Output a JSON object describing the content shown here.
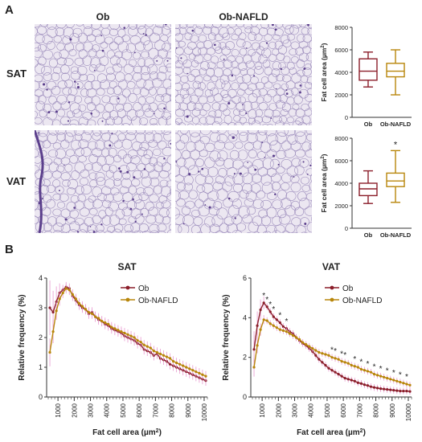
{
  "panel_a": {
    "letter": "A",
    "columns": [
      "Ob",
      "Ob-NAFLD"
    ],
    "rows": [
      "SAT",
      "VAT"
    ],
    "tissue_colors": {
      "background": "#ece7f1",
      "membrane": "#8a78b0",
      "dark": "#5b3f8c"
    }
  },
  "panel_b": {
    "letter": "B"
  },
  "series_colors": {
    "Ob": "#8b1e2a",
    "Ob-NAFLD": "#b8860b",
    "error": "#e89ad0"
  },
  "chart_data": [
    {
      "type": "box",
      "id": "box-sat",
      "categories": [
        "Ob",
        "Ob-NAFLD"
      ],
      "boxes": [
        {
          "name": "Ob",
          "min": 2700,
          "q1": 3300,
          "median": 4100,
          "q3": 5200,
          "max": 5800
        },
        {
          "name": "Ob-NAFLD",
          "min": 2000,
          "q1": 3600,
          "median": 4100,
          "q3": 4800,
          "max": 6000
        }
      ],
      "ylabel": "Fat cell area (µm²)",
      "ylim": [
        0,
        8000
      ],
      "yticks": [
        "0",
        "2000",
        "4000",
        "6000",
        "8000"
      ],
      "annotations": []
    },
    {
      "type": "box",
      "id": "box-vat",
      "categories": [
        "Ob",
        "Ob-NAFLD"
      ],
      "boxes": [
        {
          "name": "Ob",
          "min": 2200,
          "q1": 2900,
          "median": 3500,
          "q3": 4000,
          "max": 5100
        },
        {
          "name": "Ob-NAFLD",
          "min": 2300,
          "q1": 3700,
          "median": 4200,
          "q3": 4900,
          "max": 6900
        }
      ],
      "ylabel": "Fat cell area (µm²)",
      "ylim": [
        0,
        8000
      ],
      "yticks": [
        "0",
        "2000",
        "4000",
        "6000",
        "8000"
      ],
      "annotations": [
        {
          "category": "Ob-NAFLD",
          "text": "*"
        }
      ]
    },
    {
      "type": "line",
      "id": "line-sat",
      "title": "SAT",
      "xlabel": "Fat cell area (µm²)",
      "ylabel": "Relative frequency (%)",
      "xlim": [
        300,
        10200
      ],
      "ylim": [
        0,
        4
      ],
      "xticks": [
        "1000",
        "2000",
        "3000",
        "4000",
        "5000",
        "6000",
        "7000",
        "8000",
        "9000",
        "10000"
      ],
      "yticks": [
        "0",
        "1",
        "2",
        "3",
        "4"
      ],
      "legend": "top-right",
      "x": [
        500,
        700,
        900,
        1100,
        1300,
        1500,
        1700,
        1900,
        2100,
        2300,
        2500,
        2700,
        2900,
        3100,
        3300,
        3500,
        3700,
        3900,
        4100,
        4300,
        4500,
        4700,
        4900,
        5100,
        5300,
        5500,
        5700,
        5900,
        6100,
        6300,
        6500,
        6700,
        6900,
        7100,
        7300,
        7500,
        7700,
        7900,
        8100,
        8300,
        8500,
        8700,
        8900,
        9100,
        9300,
        9500,
        9700,
        9900,
        10100
      ],
      "series": [
        {
          "name": "Ob",
          "values": [
            3.0,
            2.85,
            3.2,
            3.5,
            3.6,
            3.7,
            3.65,
            3.4,
            3.25,
            3.1,
            3.0,
            2.95,
            2.8,
            2.85,
            2.7,
            2.6,
            2.55,
            2.45,
            2.4,
            2.3,
            2.25,
            2.2,
            2.15,
            2.05,
            2.0,
            1.95,
            1.9,
            1.8,
            1.75,
            1.6,
            1.55,
            1.5,
            1.4,
            1.45,
            1.3,
            1.25,
            1.2,
            1.1,
            1.05,
            1.0,
            0.95,
            0.9,
            0.85,
            0.8,
            0.75,
            0.7,
            0.65,
            0.6,
            0.55
          ]
        },
        {
          "name": "Ob-NAFLD",
          "values": [
            1.5,
            2.2,
            2.9,
            3.3,
            3.5,
            3.65,
            3.6,
            3.45,
            3.3,
            3.15,
            3.05,
            2.95,
            2.85,
            2.8,
            2.7,
            2.65,
            2.55,
            2.5,
            2.45,
            2.35,
            2.3,
            2.25,
            2.2,
            2.15,
            2.1,
            2.05,
            2.0,
            1.9,
            1.85,
            1.75,
            1.7,
            1.65,
            1.55,
            1.5,
            1.45,
            1.4,
            1.35,
            1.3,
            1.2,
            1.15,
            1.1,
            1.05,
            1.0,
            0.95,
            0.9,
            0.85,
            0.8,
            0.75,
            0.7
          ]
        }
      ]
    },
    {
      "type": "line",
      "id": "line-vat",
      "title": "VAT",
      "xlabel": "Fat cell area (µm²)",
      "ylabel": "Relative frequency (%)",
      "xlim": [
        300,
        10200
      ],
      "ylim": [
        0,
        6
      ],
      "xticks": [
        "1000",
        "2000",
        "3000",
        "4000",
        "5000",
        "6000",
        "7000",
        "8000",
        "9000",
        "10000"
      ],
      "yticks": [
        "0",
        "2",
        "4",
        "6"
      ],
      "legend": "top-right",
      "x": [
        500,
        700,
        900,
        1100,
        1300,
        1500,
        1700,
        1900,
        2100,
        2300,
        2500,
        2700,
        2900,
        3100,
        3300,
        3500,
        3700,
        3900,
        4100,
        4300,
        4500,
        4700,
        4900,
        5100,
        5300,
        5500,
        5700,
        5900,
        6100,
        6300,
        6500,
        6700,
        6900,
        7100,
        7300,
        7500,
        7700,
        7900,
        8100,
        8300,
        8500,
        8700,
        8900,
        9100,
        9300,
        9500,
        9700,
        9900,
        10100
      ],
      "series": [
        {
          "name": "Ob",
          "values": [
            2.4,
            3.6,
            4.4,
            4.75,
            4.55,
            4.3,
            4.05,
            3.9,
            3.75,
            3.55,
            3.45,
            3.3,
            3.2,
            3.0,
            2.85,
            2.7,
            2.6,
            2.45,
            2.3,
            2.1,
            1.9,
            1.75,
            1.6,
            1.45,
            1.35,
            1.25,
            1.15,
            1.05,
            0.95,
            0.9,
            0.85,
            0.8,
            0.72,
            0.68,
            0.62,
            0.58,
            0.52,
            0.48,
            0.45,
            0.42,
            0.4,
            0.38,
            0.36,
            0.34,
            0.32,
            0.3,
            0.3,
            0.3,
            0.28
          ]
        },
        {
          "name": "Ob-NAFLD",
          "values": [
            1.5,
            2.6,
            3.4,
            3.9,
            3.85,
            3.7,
            3.6,
            3.5,
            3.4,
            3.35,
            3.3,
            3.2,
            3.1,
            3.0,
            2.9,
            2.75,
            2.65,
            2.55,
            2.45,
            2.35,
            2.25,
            2.2,
            2.15,
            2.1,
            2.0,
            1.95,
            1.9,
            1.8,
            1.75,
            1.7,
            1.6,
            1.55,
            1.5,
            1.4,
            1.35,
            1.3,
            1.25,
            1.15,
            1.1,
            1.05,
            1.0,
            0.95,
            0.9,
            0.85,
            0.8,
            0.75,
            0.7,
            0.65,
            0.6
          ]
        }
      ],
      "annotations": [
        {
          "x": 1100,
          "text": "*"
        },
        {
          "x": 1300,
          "text": "*"
        },
        {
          "x": 1500,
          "text": "*"
        },
        {
          "x": 1700,
          "text": "*"
        },
        {
          "x": 2100,
          "text": "*"
        },
        {
          "x": 2500,
          "text": "*"
        },
        {
          "x": 5300,
          "text": "*"
        },
        {
          "x": 5500,
          "text": "*"
        },
        {
          "x": 5900,
          "text": "*"
        },
        {
          "x": 6100,
          "text": "*"
        },
        {
          "x": 6700,
          "text": "*"
        },
        {
          "x": 7100,
          "text": "*"
        },
        {
          "x": 7500,
          "text": "*"
        },
        {
          "x": 7900,
          "text": "*"
        },
        {
          "x": 8300,
          "text": "*"
        },
        {
          "x": 8700,
          "text": "*"
        },
        {
          "x": 9100,
          "text": "*"
        },
        {
          "x": 9500,
          "text": "*"
        },
        {
          "x": 9900,
          "text": "*"
        }
      ]
    }
  ]
}
